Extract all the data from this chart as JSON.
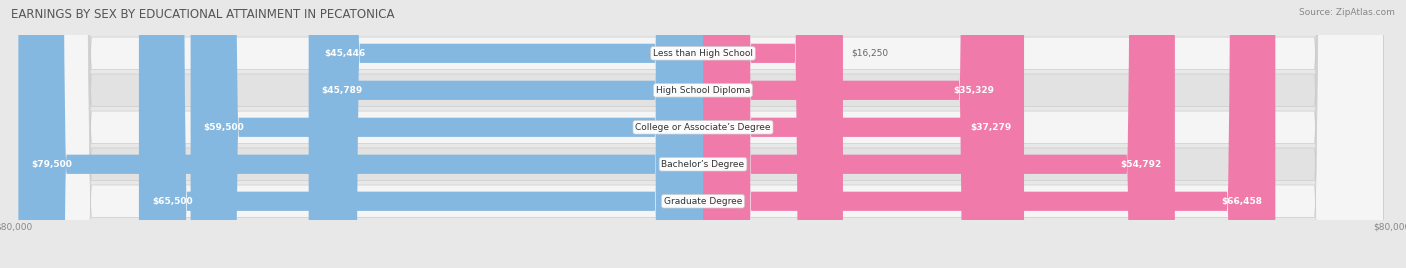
{
  "title": "EARNINGS BY SEX BY EDUCATIONAL ATTAINMENT IN PECATONICA",
  "source": "Source: ZipAtlas.com",
  "categories": [
    "Less than High School",
    "High School Diploma",
    "College or Associate’s Degree",
    "Bachelor’s Degree",
    "Graduate Degree"
  ],
  "male_values": [
    45446,
    45789,
    59500,
    79500,
    65500
  ],
  "female_values": [
    16250,
    35329,
    37279,
    54792,
    66458
  ],
  "male_labels": [
    "$45,446",
    "$45,789",
    "$59,500",
    "$79,500",
    "$65,500"
  ],
  "female_labels": [
    "$16,250",
    "$35,329",
    "$37,279",
    "$54,792",
    "$66,458"
  ],
  "male_color": "#85b8e0",
  "female_color": "#f07aaa",
  "axis_max": 80000,
  "bg_color": "#e8e8e8",
  "row_bg_light": "#f5f5f5",
  "row_bg_dark": "#e2e2e2",
  "title_fontsize": 8.5,
  "source_fontsize": 6.5,
  "label_fontsize": 6.5,
  "category_fontsize": 6.5,
  "tick_fontsize": 6.5,
  "legend_fontsize": 7,
  "bar_height": 0.52
}
